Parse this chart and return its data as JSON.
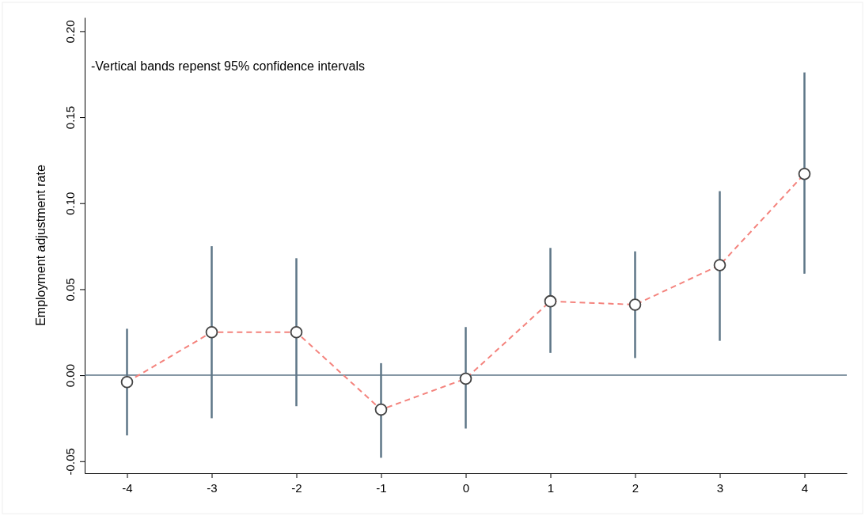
{
  "chart_data": {
    "type": "line",
    "ylabel": "Employment adjustment rate",
    "annotations": [
      "-Vertical bands repenst 95% confidence intervals"
    ],
    "x": [
      -4,
      -3,
      -2,
      -1,
      0,
      1,
      2,
      3,
      4
    ],
    "series": [
      {
        "color": "#f4837d",
        "values": [
          -0.004,
          0.025,
          0.025,
          -0.02,
          -0.002,
          0.043,
          0.041,
          0.064,
          0.117
        ],
        "errors": [
          [
            -0.035,
            0.027
          ],
          [
            -0.025,
            0.075
          ],
          [
            -0.018,
            0.068
          ],
          [
            -0.048,
            0.007
          ],
          [
            -0.031,
            0.028
          ],
          [
            0.013,
            0.074
          ],
          [
            0.01,
            0.072
          ],
          [
            0.02,
            0.107
          ],
          [
            0.059,
            0.176
          ]
        ]
      }
    ],
    "xlim": [
      -4.5,
      4.5
    ],
    "xticks": [
      -4,
      -3,
      -2,
      -1,
      0,
      1,
      2,
      3,
      4
    ],
    "ylim": [
      -0.057,
      0.208
    ],
    "yticks": [
      {
        "value": -0.05,
        "label": "-0.05"
      },
      {
        "value": 0,
        "label": "0.00"
      },
      {
        "value": 0.05,
        "label": "0.05"
      },
      {
        "value": 0.1,
        "label": "0.10"
      },
      {
        "value": 0.15,
        "label": "0.15"
      },
      {
        "value": 0.2,
        "label": "0.20"
      }
    ],
    "ref_lines": [
      {
        "axis": "y",
        "value": 0,
        "color": "#5e7687"
      }
    ],
    "marker": "circle",
    "line_style": "dashed",
    "grid": false
  }
}
